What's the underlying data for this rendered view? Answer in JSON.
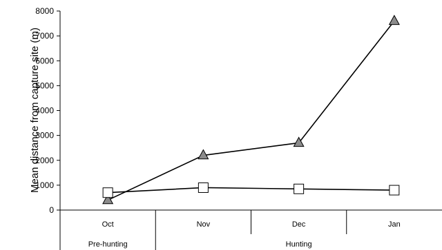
{
  "chart_data": {
    "type": "line",
    "title": "",
    "xlabel": "",
    "ylabel": "Mean distance from capture site (m)",
    "ylim": [
      0,
      8000
    ],
    "yticks": [
      0,
      1000,
      2000,
      3000,
      4000,
      5000,
      6000,
      7000,
      8000
    ],
    "categories": [
      "Oct",
      "Nov",
      "Dec",
      "Jan"
    ],
    "periods": [
      {
        "label": "Pre-hunting",
        "categories": [
          "Oct"
        ]
      },
      {
        "label": "Hunting",
        "categories": [
          "Nov",
          "Dec",
          "Jan"
        ]
      }
    ],
    "series": [
      {
        "marker": "triangle",
        "fill": "#8c8c8c",
        "values": [
          400,
          2200,
          2700,
          7600
        ]
      },
      {
        "marker": "square",
        "fill": "#ffffff",
        "values": [
          700,
          900,
          850,
          800
        ]
      }
    ],
    "grid": false,
    "legend": "none"
  }
}
